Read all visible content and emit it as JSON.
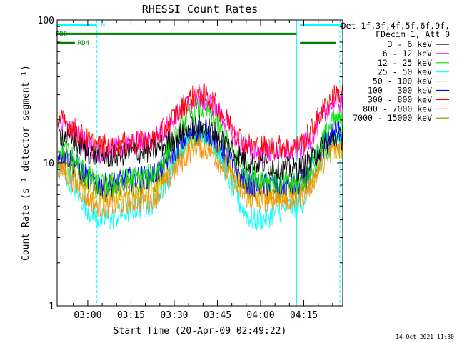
{
  "chart_data": {
    "type": "line",
    "title": "RHESSI Count Rates",
    "xlabel": "Start Time (20-Apr-09 02:49:22)",
    "ylabel": "Count Rate (s⁻¹ detector segment⁻¹)",
    "yscale": "log",
    "ylim": [
      1,
      100
    ],
    "xlim": [
      "02:49:22",
      "04:28:30"
    ],
    "x_ticks": [
      "03:00",
      "03:15",
      "03:30",
      "03:45",
      "04:00",
      "04:15"
    ],
    "y_ticks": [
      "1",
      "10",
      "100"
    ],
    "legend_header": [
      "Det 1f,3f,4f,5f,6f,9f,",
      "FDecim 1, Att 0"
    ],
    "legend_position": "right",
    "timestamp": "14-Oct-2021 11:30",
    "series": [
      {
        "name": "3 - 6 keV",
        "color": "#000000",
        "x": [
          "02:49",
          "03:05",
          "03:20",
          "03:39",
          "03:58",
          "04:12",
          "04:27"
        ],
        "y": [
          16,
          11,
          12,
          18,
          10,
          9,
          15
        ]
      },
      {
        "name": "6 - 12 keV",
        "color": "#ff00ff",
        "x": [
          "02:49",
          "03:05",
          "03:20",
          "03:39",
          "03:58",
          "04:12",
          "04:27"
        ],
        "y": [
          19,
          12,
          14,
          28,
          12,
          12,
          27
        ]
      },
      {
        "name": "12 - 25 keV",
        "color": "#00e000",
        "x": [
          "02:49",
          "03:05",
          "03:20",
          "03:39",
          "03:58",
          "04:12",
          "04:27"
        ],
        "y": [
          13,
          7,
          8,
          24,
          8,
          7,
          20
        ]
      },
      {
        "name": "25 - 50 keV",
        "color": "#00ffff",
        "x": [
          "02:49",
          "03:05",
          "03:20",
          "03:39",
          "03:58",
          "04:12",
          "04:27"
        ],
        "y": [
          9,
          4,
          5,
          17,
          4,
          5,
          15
        ]
      },
      {
        "name": "50 - 100 keV",
        "color": "#c8c800",
        "x": [
          "02:49",
          "03:05",
          "03:20",
          "03:39",
          "03:58",
          "04:12",
          "04:27"
        ],
        "y": [
          10,
          6,
          6,
          15,
          6,
          6,
          13
        ]
      },
      {
        "name": "100 - 300 keV",
        "color": "#0000ff",
        "x": [
          "02:49",
          "03:05",
          "03:20",
          "03:39",
          "03:58",
          "04:12",
          "04:27"
        ],
        "y": [
          12,
          7,
          8,
          17,
          7,
          7,
          17
        ]
      },
      {
        "name": "300 - 800 keV",
        "color": "#ff0000",
        "x": [
          "02:49",
          "03:05",
          "03:20",
          "03:39",
          "03:58",
          "04:12",
          "04:27"
        ],
        "y": [
          20,
          13,
          14,
          30,
          13,
          13,
          30
        ]
      },
      {
        "name": "800 - 7000 keV",
        "color": "#ff8c00",
        "x": [
          "02:49",
          "03:05",
          "03:20",
          "03:39",
          "03:58",
          "04:12",
          "04:27"
        ],
        "y": [
          9,
          5,
          5.5,
          13,
          5.5,
          5.5,
          13
        ]
      },
      {
        "name": "7000 - 15000 keV",
        "color": "#8b8b00",
        "x": [
          "02:49",
          "03:05",
          "03:20",
          "03:39",
          "03:58",
          "04:12",
          "04:27"
        ],
        "y": [
          11,
          6.5,
          7,
          16,
          6.5,
          6.5,
          15
        ]
      }
    ],
    "annotations": [
      {
        "label": "N",
        "color": "#00ffff",
        "x_start": "02:49:22",
        "x_end": "03:03:10",
        "y": 92
      },
      {
        "label": "",
        "color": "#00ffff",
        "x_start": "04:13:40",
        "x_end": "04:28:30",
        "y": 92
      },
      {
        "label": "RD0",
        "color": "#008000",
        "x_start": "02:49:22",
        "x_end": "04:12:30",
        "y": 80
      },
      {
        "label": "RD4",
        "color": "#008000",
        "x_start": "02:49:22",
        "x_end": "02:55:30",
        "y": 69
      },
      {
        "label": "",
        "color": "#008000",
        "x_start": "04:13:40",
        "x_end": "04:26:00",
        "y": 69
      }
    ],
    "vertical_markers": [
      {
        "x": "02:49:22",
        "color": "#00ffff",
        "style": "solid"
      },
      {
        "x": "03:03:10",
        "color": "#00ffff",
        "style": "dashed"
      },
      {
        "x": "04:12:30",
        "color": "#00ffff",
        "style": "solid"
      },
      {
        "x": "04:27:30",
        "color": "#00ffff",
        "style": "dashed"
      }
    ]
  }
}
